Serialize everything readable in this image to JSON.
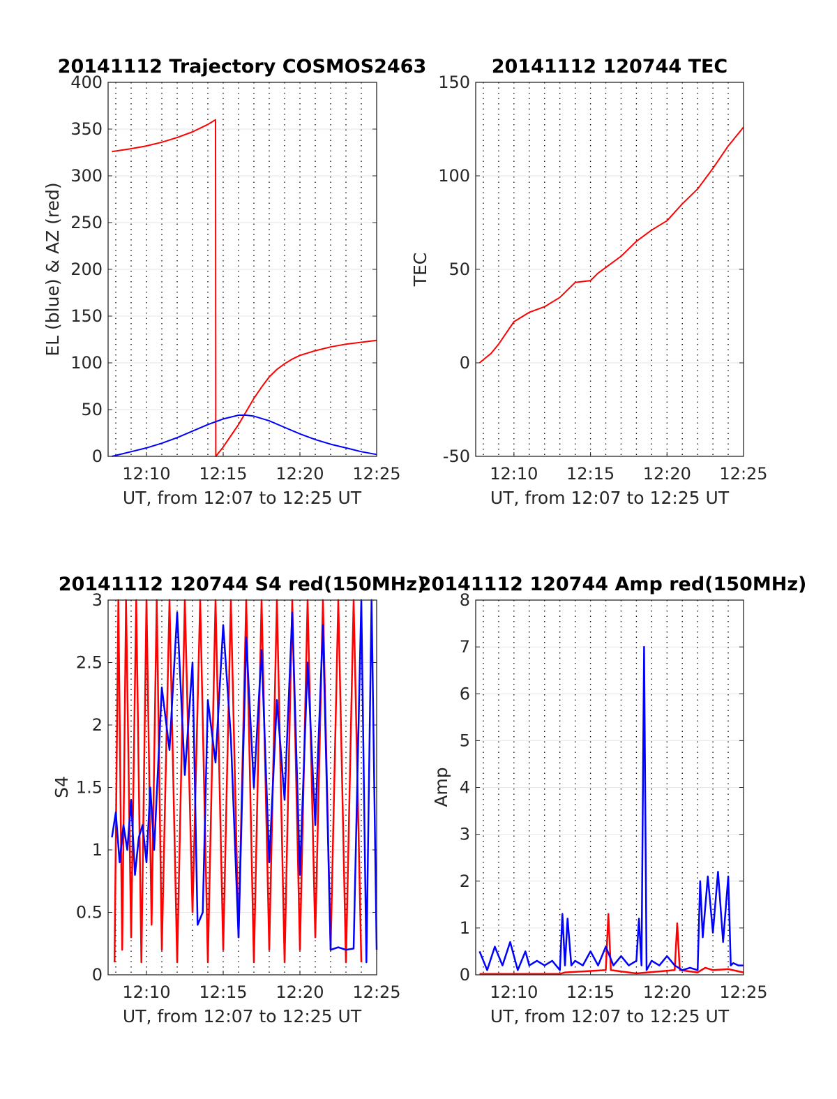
{
  "figure": {
    "colors": {
      "az": "#ff0000",
      "el": "#0000ff",
      "grid_major": "#e6e6e6",
      "grid_minor": "#000000",
      "axes": "#262626"
    }
  },
  "chart_data": [
    {
      "id": "trajectory",
      "type": "line",
      "title": "20141112 Trajectory COSMOS2463",
      "xlabel": "UT, from 12:07 to 12:25 UT",
      "ylabel": "EL (blue) & AZ (red)",
      "xlim": [
        "12:07:30",
        "12:25:00"
      ],
      "ylim": [
        0,
        400
      ],
      "xticks": [
        "12:10",
        "12:15",
        "12:20",
        "12:25"
      ],
      "yticks": [
        "0",
        "50",
        "100",
        "150",
        "200",
        "250",
        "300",
        "350",
        "400"
      ],
      "grid": "minor dotted vertical every 1 min, major horizontal",
      "series": [
        {
          "color": "#ff0000",
          "x": [
            "12:07:45",
            "12:09:00",
            "12:10:00",
            "12:11:00",
            "12:12:00",
            "12:13:00",
            "12:14:00",
            "12:14:30",
            "12:14:31",
            "12:15:00",
            "12:15:30",
            "12:16:00",
            "12:16:30",
            "12:17:00",
            "12:17:30",
            "12:18:00",
            "12:18:30",
            "12:19:00",
            "12:19:30",
            "12:20:00",
            "12:21:00",
            "12:22:00",
            "12:23:00",
            "12:24:00",
            "12:25:00"
          ],
          "values": [
            326,
            329,
            332,
            336,
            341,
            347,
            355,
            360,
            0,
            10,
            22,
            34,
            48,
            62,
            74,
            85,
            93,
            99,
            104,
            108,
            113,
            117,
            120,
            122,
            124
          ]
        },
        {
          "color": "#0000ff",
          "x": [
            "12:07:45",
            "12:09:00",
            "12:10:00",
            "12:11:00",
            "12:12:00",
            "12:13:00",
            "12:14:00",
            "12:15:00",
            "12:16:00",
            "12:16:30",
            "12:17:00",
            "12:18:00",
            "12:19:00",
            "12:20:00",
            "12:21:00",
            "12:22:00",
            "12:23:00",
            "12:24:00",
            "12:25:00"
          ],
          "values": [
            0,
            5,
            9,
            14,
            20,
            27,
            34,
            40,
            44,
            44,
            43,
            38,
            31,
            24,
            18,
            13,
            9,
            5,
            2
          ]
        }
      ]
    },
    {
      "id": "tec",
      "type": "line",
      "title": "20141112 120744 TEC",
      "xlabel": "UT, from 12:07 to 12:25 UT",
      "ylabel": "TEC",
      "xlim": [
        "12:07:30",
        "12:25:00"
      ],
      "ylim": [
        -50,
        150
      ],
      "xticks": [
        "12:10",
        "12:15",
        "12:20",
        "12:25"
      ],
      "yticks": [
        "-50",
        "0",
        "50",
        "100",
        "150"
      ],
      "grid": "minor dotted vertical every 1 min, major horizontal",
      "series": [
        {
          "color": "#ff0000",
          "x": [
            "12:07:45",
            "12:08:30",
            "12:09:00",
            "12:09:30",
            "12:10:00",
            "12:11:00",
            "12:12:00",
            "12:13:00",
            "12:14:00",
            "12:15:00",
            "12:15:30",
            "12:16:00",
            "12:17:00",
            "12:18:00",
            "12:19:00",
            "12:20:00",
            "12:21:00",
            "12:22:00",
            "12:23:00",
            "12:24:00",
            "12:25:00"
          ],
          "values": [
            0,
            5,
            10,
            16,
            22,
            27,
            30,
            35,
            43,
            44,
            48,
            51,
            57,
            65,
            71,
            76,
            85,
            93,
            104,
            116,
            126
          ]
        }
      ]
    },
    {
      "id": "s4",
      "type": "line",
      "title": "20141112 120744 S4 red(150MHz)",
      "xlabel": "UT, from 12:07 to 12:25 UT",
      "ylabel": "S4",
      "xlim": [
        "12:07:30",
        "12:25:00"
      ],
      "ylim": [
        0,
        3
      ],
      "xticks": [
        "12:10",
        "12:15",
        "12:20",
        "12:25"
      ],
      "yticks": [
        "0",
        "0.5",
        "1",
        "1.5",
        "2",
        "2.5",
        "3"
      ],
      "grid": "minor dotted vertical every 1 min, major horizontal",
      "series": [
        {
          "color": "#ff0000",
          "x": [
            "12:07:55",
            "12:08:10",
            "12:08:25",
            "12:08:40",
            "12:09:00",
            "12:09:20",
            "12:09:40",
            "12:10:00",
            "12:10:20",
            "12:10:40",
            "12:11:00",
            "12:11:30",
            "12:12:00",
            "12:12:30",
            "12:13:00",
            "12:13:30",
            "12:14:00",
            "12:14:30",
            "12:15:00",
            "12:15:30",
            "12:16:00",
            "12:16:30",
            "12:17:00",
            "12:17:30",
            "12:18:00",
            "12:18:30",
            "12:19:00",
            "12:19:30",
            "12:20:00",
            "12:20:30",
            "12:21:00",
            "12:21:30",
            "12:22:00",
            "12:22:30",
            "12:23:00",
            "12:23:30",
            "12:24:00"
          ],
          "values": [
            0.1,
            3,
            0.2,
            3,
            0.3,
            3,
            0.1,
            3,
            0.4,
            3,
            0.2,
            3,
            0.1,
            3,
            0.5,
            3,
            0.1,
            3,
            0.2,
            3,
            0.3,
            3,
            0.1,
            3,
            0.2,
            3,
            0.1,
            3,
            0.2,
            3,
            0.3,
            3,
            0.2,
            3,
            0.1,
            3,
            0.1
          ]
        },
        {
          "color": "#0000ff",
          "x": [
            "12:07:45",
            "12:08:00",
            "12:08:15",
            "12:08:30",
            "12:08:45",
            "12:09:00",
            "12:09:15",
            "12:09:30",
            "12:09:45",
            "12:10:00",
            "12:10:15",
            "12:10:30",
            "12:11:00",
            "12:11:30",
            "12:12:00",
            "12:12:30",
            "12:13:00",
            "12:13:20",
            "12:13:40",
            "12:14:00",
            "12:14:30",
            "12:15:00",
            "12:15:30",
            "12:16:00",
            "12:16:30",
            "12:17:00",
            "12:17:30",
            "12:18:00",
            "12:18:30",
            "12:19:00",
            "12:19:30",
            "12:20:00",
            "12:20:30",
            "12:21:00",
            "12:21:30",
            "12:22:00",
            "12:22:30",
            "12:23:00",
            "12:23:30",
            "12:24:00",
            "12:24:20",
            "12:24:40",
            "12:25:00"
          ],
          "values": [
            1.1,
            1.3,
            0.9,
            1.2,
            1.0,
            1.4,
            0.8,
            1.1,
            1.2,
            0.9,
            1.5,
            1.0,
            2.3,
            1.8,
            2.9,
            1.6,
            2.5,
            0.4,
            0.5,
            2.2,
            1.7,
            2.8,
            1.9,
            0.3,
            2.7,
            1.5,
            2.6,
            0.9,
            2.2,
            1.4,
            2.9,
            0.8,
            2.5,
            1.2,
            2.8,
            0.2,
            0.22,
            0.2,
            0.21,
            3,
            0.1,
            3,
            0.2
          ]
        }
      ]
    },
    {
      "id": "amp",
      "type": "line",
      "title": "20141112 120744 Amp red(150MHz)",
      "xlabel": "UT, from 12:07 to 12:25 UT",
      "ylabel": "Amp",
      "xlim": [
        "12:07:30",
        "12:25:00"
      ],
      "ylim": [
        0,
        8
      ],
      "xticks": [
        "12:10",
        "12:15",
        "12:20",
        "12:25"
      ],
      "yticks": [
        "0",
        "1",
        "2",
        "3",
        "4",
        "5",
        "6",
        "7",
        "8"
      ],
      "grid": "minor dotted vertical every 1 min, major horizontal",
      "series": [
        {
          "color": "#ff0000",
          "x": [
            "12:07:45",
            "12:13:00",
            "12:13:20",
            "12:16:00",
            "12:16:10",
            "12:16:20",
            "12:18:00",
            "12:20:30",
            "12:20:40",
            "12:20:50",
            "12:22:00",
            "12:22:30",
            "12:23:00",
            "12:24:00",
            "12:25:00"
          ],
          "values": [
            0.02,
            0.02,
            0.05,
            0.1,
            1.3,
            0.1,
            0.03,
            0.1,
            1.1,
            0.1,
            0.05,
            0.15,
            0.1,
            0.12,
            0.05
          ]
        },
        {
          "color": "#0000ff",
          "x": [
            "12:07:45",
            "12:08:15",
            "12:08:45",
            "12:09:15",
            "12:09:45",
            "12:10:15",
            "12:10:45",
            "12:11:00",
            "12:11:30",
            "12:12:00",
            "12:12:30",
            "12:13:00",
            "12:13:10",
            "12:13:20",
            "12:13:30",
            "12:13:45",
            "12:14:00",
            "12:14:30",
            "12:15:00",
            "12:15:30",
            "12:16:00",
            "12:16:30",
            "12:17:00",
            "12:17:30",
            "12:18:00",
            "12:18:10",
            "12:18:20",
            "12:18:30",
            "12:18:40",
            "12:19:00",
            "12:19:30",
            "12:20:00",
            "12:20:30",
            "12:21:00",
            "12:21:30",
            "12:22:00",
            "12:22:10",
            "12:22:20",
            "12:22:40",
            "12:23:00",
            "12:23:20",
            "12:23:40",
            "12:24:00",
            "12:24:10",
            "12:24:20",
            "12:24:40",
            "12:25:00"
          ],
          "values": [
            0.5,
            0.1,
            0.6,
            0.2,
            0.7,
            0.1,
            0.5,
            0.2,
            0.3,
            0.2,
            0.3,
            0.1,
            1.3,
            0.2,
            1.2,
            0.2,
            0.3,
            0.2,
            0.5,
            0.2,
            0.6,
            0.2,
            0.4,
            0.2,
            0.3,
            1.2,
            0.2,
            7.0,
            0.1,
            0.3,
            0.2,
            0.4,
            0.2,
            0.1,
            0.15,
            0.1,
            2.0,
            0.8,
            2.1,
            0.9,
            2.2,
            0.7,
            2.1,
            0.2,
            0.25,
            0.2,
            0.2
          ]
        }
      ]
    }
  ]
}
